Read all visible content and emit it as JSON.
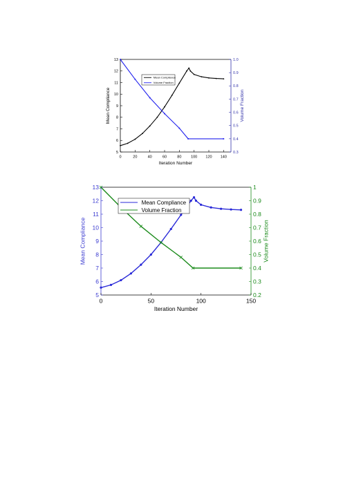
{
  "chart_data": [
    {
      "type": "line",
      "title": "",
      "xlabel": "Iteration Number",
      "ylabel": "Mean Compliance",
      "y2label": "Volume Fraction",
      "xlim": [
        0,
        150
      ],
      "ylim": [
        5,
        13
      ],
      "y2lim": [
        0.3,
        1.0
      ],
      "xticks": [
        "0",
        "20",
        "40",
        "60",
        "80",
        "100",
        "120",
        "140"
      ],
      "yticks": [
        "5",
        "6",
        "7",
        "8",
        "9",
        "10",
        "11",
        "12",
        "13"
      ],
      "y2ticks": [
        "0.3",
        "0.4",
        "0.5",
        "0.6",
        "0.7",
        "0.8",
        "0.9",
        "1.0"
      ],
      "grid": false,
      "legend_position": "top-center",
      "colors": {
        "axis_left": "#000000",
        "axis_right": "#3333aa",
        "compliance": "#000000",
        "volume": "#2222ee"
      },
      "series": [
        {
          "name": "Mean Compliance",
          "axis": "left",
          "points": [
            [
              0,
              5.55
            ],
            [
              10,
              5.75
            ],
            [
              20,
              6.1
            ],
            [
              30,
              6.6
            ],
            [
              40,
              7.25
            ],
            [
              50,
              8.0
            ],
            [
              60,
              8.9
            ],
            [
              70,
              9.9
            ],
            [
              80,
              10.95
            ],
            [
              90,
              12.0
            ],
            [
              93,
              12.25
            ],
            [
              95,
              12.0
            ],
            [
              100,
              11.7
            ],
            [
              110,
              11.5
            ],
            [
              120,
              11.4
            ],
            [
              130,
              11.35
            ],
            [
              140,
              11.32
            ]
          ]
        },
        {
          "name": "Volume Fraction",
          "axis": "right",
          "points": [
            [
              0,
              1.0
            ],
            [
              20,
              0.85
            ],
            [
              40,
              0.71
            ],
            [
              60,
              0.59
            ],
            [
              80,
              0.48
            ],
            [
              92,
              0.4
            ],
            [
              140,
              0.4
            ]
          ]
        }
      ]
    },
    {
      "type": "line",
      "title": "",
      "xlabel": "Iteration Number",
      "ylabel": "Mean Compliance",
      "y2label": "Volume Fraction",
      "xlim": [
        0,
        150
      ],
      "ylim": [
        5,
        13
      ],
      "y2lim": [
        0.2,
        1.0
      ],
      "xticks": [
        "0",
        "50",
        "100",
        "150"
      ],
      "yticks": [
        "5",
        "6",
        "7",
        "8",
        "9",
        "10",
        "11",
        "12",
        "13"
      ],
      "y2ticks": [
        "0.2",
        "0.3",
        "0.4",
        "0.5",
        "0.6",
        "0.7",
        "0.8",
        "0.9",
        "1"
      ],
      "grid": false,
      "legend_position": "top-center",
      "colors": {
        "axis_left": "#3a3ad0",
        "axis_right": "#1a8a1a",
        "compliance": "#2a2ad8",
        "volume": "#1a8a1a"
      },
      "series": [
        {
          "name": "Mean Compliance",
          "axis": "left",
          "points": [
            [
              0,
              5.55
            ],
            [
              10,
              5.75
            ],
            [
              20,
              6.1
            ],
            [
              30,
              6.6
            ],
            [
              40,
              7.25
            ],
            [
              50,
              8.0
            ],
            [
              60,
              8.9
            ],
            [
              70,
              9.9
            ],
            [
              80,
              10.95
            ],
            [
              90,
              12.0
            ],
            [
              93,
              12.25
            ],
            [
              95,
              12.0
            ],
            [
              100,
              11.7
            ],
            [
              110,
              11.5
            ],
            [
              120,
              11.4
            ],
            [
              130,
              11.35
            ],
            [
              140,
              11.32
            ]
          ]
        },
        {
          "name": "Volume Fraction",
          "axis": "right",
          "points": [
            [
              0,
              1.0
            ],
            [
              20,
              0.85
            ],
            [
              40,
              0.71
            ],
            [
              60,
              0.59
            ],
            [
              80,
              0.48
            ],
            [
              92,
              0.4
            ],
            [
              140,
              0.4
            ]
          ]
        }
      ]
    }
  ]
}
